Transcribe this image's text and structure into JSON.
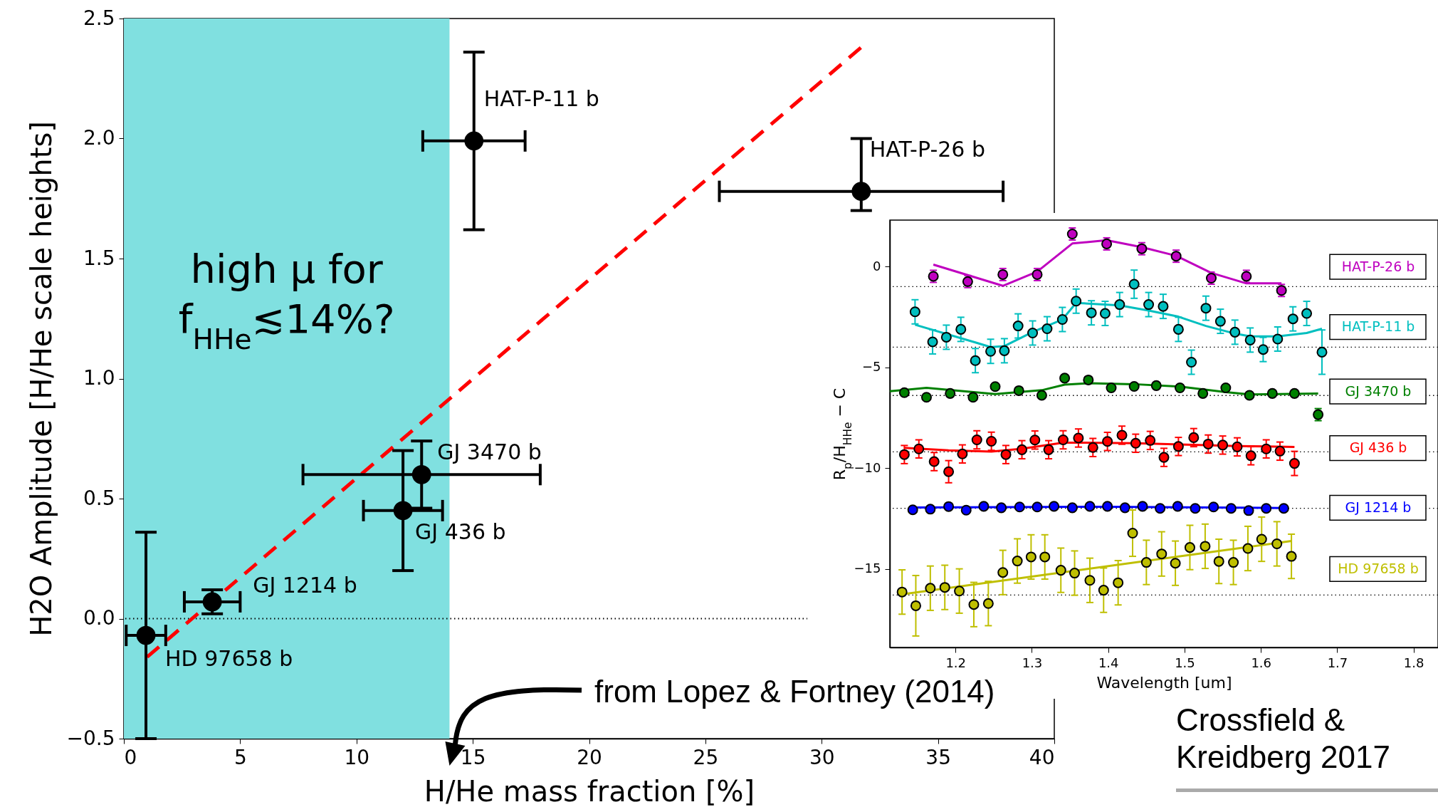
{
  "chart_data": [
    {
      "type": "scatter",
      "xlabel": "H/He mass fraction [%]",
      "ylabel": "H2O Amplitude [H/He scale heights]",
      "xlim": [
        0,
        40
      ],
      "ylim": [
        -0.5,
        2.5
      ],
      "xticks": [
        0,
        5,
        10,
        15,
        20,
        25,
        30,
        35,
        40
      ],
      "yticks": [
        {
          "value": -0.5,
          "label": "−0.5"
        },
        {
          "value": 0,
          "label": "0.0"
        },
        0.5,
        {
          "value": 1,
          "label": "1.0"
        },
        1.5,
        {
          "value": 2,
          "label": "2.0"
        },
        2.5
      ],
      "marker": "circle",
      "bands": [
        {
          "axis": "x",
          "from": 0,
          "to": 14,
          "color": "#80e0e0",
          "label": "high μ for\nf$_{HHe}$≲14%?"
        }
      ],
      "ref_lines": [
        {
          "axis": "y",
          "value": 0,
          "line_style": "dotted"
        }
      ],
      "annotations": [
        {
          "text": "HAT-P-11 b",
          "x": 15.05,
          "y": 1.99
        },
        {
          "text": "HAT-P-26 b",
          "x": 31.7,
          "y": 1.78
        },
        {
          "text": "GJ 3470 b",
          "x": 12.8,
          "y": 0.6
        },
        {
          "text": "GJ 436 b",
          "x": 12.0,
          "y": 0.45
        },
        {
          "text": "GJ 1214 b",
          "x": 3.8,
          "y": 0.07
        },
        {
          "text": "HD 97658 b",
          "x": 0.95,
          "y": -0.07
        },
        "from Lopez & Fortney (2014)"
      ],
      "series": [
        {
          "type": "line",
          "color": "#ff0000",
          "line_style": "dashed",
          "marker": "none",
          "x": [
            1.0,
            31.7
          ],
          "values": [
            -0.16,
            2.38
          ]
        },
        {
          "color": "#000000",
          "x": [
            15.05,
            31.7,
            12.8,
            12.0,
            3.8,
            0.95
          ],
          "values": [
            1.99,
            1.78,
            0.6,
            0.45,
            0.07,
            -0.07
          ],
          "xerrors": [
            2.2,
            6.1,
            5.1,
            1.7,
            1.2,
            0.85
          ],
          "errors": [
            0.37,
            [
              1.7,
              2.0
            ],
            0.14,
            0.25,
            0.05,
            0.43
          ]
        }
      ]
    },
    {
      "type": "scatter",
      "xlabel": "Wavelength [um]",
      "ylabel": "R$_{p}$/H$_{HHe}$ − C",
      "xlim": [
        1.114,
        1.832
      ],
      "ylim": [
        -18.9,
        2.3
      ],
      "xticks": [
        1.2,
        1.3,
        1.4,
        1.5,
        1.6,
        1.7,
        1.8
      ],
      "yticks": [
        {
          "value": -15,
          "label": "−15"
        },
        {
          "value": -10,
          "label": "−10"
        },
        {
          "value": -5,
          "label": "−5"
        },
        0
      ],
      "marker": "circle",
      "ref_lines": [
        {
          "axis": "y",
          "value": -1.0,
          "line_style": "dotted"
        },
        {
          "axis": "y",
          "value": -4.0,
          "line_style": "dotted"
        },
        {
          "axis": "y",
          "value": -6.4,
          "line_style": "dotted"
        },
        {
          "axis": "y",
          "value": -9.2,
          "line_style": "dotted"
        },
        {
          "axis": "y",
          "value": -12.0,
          "line_style": "dotted"
        },
        {
          "axis": "y",
          "value": -16.3,
          "line_style": "dotted"
        }
      ],
      "annotations": [
        "Crossfield & Kreidberg 2017"
      ],
      "series": [
        {
          "type": "line",
          "color": "#bf00bf",
          "marker": "none",
          "x": [
            1.171,
            1.262,
            1.307,
            1.353,
            1.398,
            1.444,
            1.489,
            1.535,
            1.581,
            1.627
          ],
          "values": [
            0.09,
            -0.96,
            -0.26,
            1.14,
            1.3,
            0.96,
            0.53,
            -0.32,
            -0.84,
            -0.84
          ]
        },
        {
          "type": "line",
          "color": "#00bfbf",
          "marker": "none",
          "x": [
            1.147,
            1.226,
            1.246,
            1.264,
            1.301,
            1.34,
            1.358,
            1.415,
            1.453,
            1.492,
            1.528,
            1.566,
            1.586,
            1.622,
            1.66,
            1.68
          ],
          "values": [
            -2.89,
            -3.77,
            -4.0,
            -3.95,
            -3.25,
            -2.63,
            -1.81,
            -1.93,
            -2.19,
            -2.49,
            -2.95,
            -3.33,
            -3.47,
            -3.47,
            -3.3,
            -3.09
          ]
        },
        {
          "type": "line",
          "color": "#008000",
          "marker": "none",
          "x": [
            1.114,
            1.162,
            1.252,
            1.313,
            1.343,
            1.374,
            1.434,
            1.494,
            1.554,
            1.585,
            1.675
          ],
          "values": [
            -6.19,
            -6.02,
            -6.33,
            -6.14,
            -5.86,
            -5.79,
            -5.84,
            -5.96,
            -6.23,
            -6.35,
            -6.3
          ]
        },
        {
          "type": "line",
          "color": "#ff0000",
          "marker": "none",
          "x": [
            1.133,
            1.191,
            1.247,
            1.287,
            1.341,
            1.361,
            1.436,
            1.569,
            1.644
          ],
          "values": [
            -9.0,
            -9.12,
            -9.18,
            -9.04,
            -8.74,
            -8.74,
            -8.77,
            -8.91,
            -8.95
          ]
        },
        {
          "type": "line",
          "color": "#0000ff",
          "marker": "none",
          "x": [
            1.144,
            1.399,
            1.63
          ],
          "values": [
            -11.96,
            -11.92,
            -11.98
          ]
        },
        {
          "type": "line",
          "color": "#bfbf00",
          "marker": "none",
          "x": [
            1.13,
            1.64
          ],
          "values": [
            -16.26,
            -13.62
          ]
        },
        {
          "name": "HAT-P-26 b",
          "color": "#bf00bf",
          "x": [
            1.171,
            1.216,
            1.262,
            1.307,
            1.353,
            1.398,
            1.444,
            1.489,
            1.535,
            1.581,
            1.627
          ],
          "values": [
            -0.49,
            -0.75,
            -0.4,
            -0.4,
            1.61,
            1.12,
            0.88,
            0.51,
            -0.58,
            -0.49,
            -1.19
          ],
          "errors": [
            0.3,
            0.3,
            0.3,
            0.3,
            0.3,
            0.3,
            0.3,
            0.3,
            0.3,
            0.3,
            0.3
          ]
        },
        {
          "name": "HAT-P-11 b",
          "color": "#00bfbf",
          "x": [
            1.147,
            1.17,
            1.188,
            1.207,
            1.226,
            1.246,
            1.264,
            1.282,
            1.301,
            1.32,
            1.34,
            1.358,
            1.378,
            1.396,
            1.415,
            1.434,
            1.453,
            1.472,
            1.492,
            1.509,
            1.528,
            1.547,
            1.566,
            1.586,
            1.603,
            1.622,
            1.642,
            1.66,
            1.68
          ],
          "values": [
            -2.25,
            -3.74,
            -3.51,
            -3.12,
            -4.67,
            -4.21,
            -4.18,
            -2.95,
            -3.3,
            -3.09,
            -2.63,
            -1.72,
            -2.3,
            -2.33,
            -1.89,
            -0.88,
            -1.89,
            -1.98,
            -3.12,
            -4.75,
            -2.07,
            -2.72,
            -3.26,
            -3.65,
            -4.12,
            -3.6,
            -2.6,
            -2.33,
            -4.25
          ],
          "errors": [
            0.6,
            0.6,
            0.6,
            0.6,
            0.6,
            0.6,
            0.6,
            0.6,
            0.6,
            0.6,
            0.6,
            0.6,
            0.6,
            0.6,
            0.6,
            0.7,
            0.6,
            0.6,
            0.6,
            0.6,
            0.6,
            0.6,
            0.6,
            0.6,
            0.6,
            0.6,
            0.6,
            0.6,
            1.1
          ]
        },
        {
          "name": "GJ 3470 b",
          "color": "#008000",
          "x": [
            1.133,
            1.162,
            1.193,
            1.223,
            1.252,
            1.283,
            1.313,
            1.343,
            1.374,
            1.404,
            1.434,
            1.463,
            1.494,
            1.524,
            1.554,
            1.585,
            1.615,
            1.644,
            1.675
          ],
          "values": [
            -6.26,
            -6.49,
            -6.3,
            -6.49,
            -5.96,
            -6.16,
            -6.39,
            -5.54,
            -5.63,
            -6.02,
            -5.95,
            -5.91,
            -6.02,
            -6.3,
            -6.02,
            -6.39,
            -6.3,
            -6.3,
            -7.35
          ],
          "errors": [
            0.15,
            0.15,
            0.15,
            0.15,
            0.15,
            0.15,
            0.15,
            0.15,
            0.15,
            0.15,
            0.15,
            0.15,
            0.15,
            0.15,
            0.15,
            0.15,
            0.15,
            0.15,
            0.3
          ]
        },
        {
          "name": "GJ 436 b",
          "color": "#ff0000",
          "x": [
            1.133,
            1.152,
            1.172,
            1.191,
            1.209,
            1.228,
            1.247,
            1.266,
            1.287,
            1.304,
            1.322,
            1.341,
            1.361,
            1.38,
            1.399,
            1.418,
            1.436,
            1.455,
            1.473,
            1.492,
            1.512,
            1.531,
            1.55,
            1.569,
            1.587,
            1.607,
            1.625,
            1.644
          ],
          "values": [
            -9.33,
            -9.05,
            -9.68,
            -10.18,
            -9.3,
            -8.6,
            -8.67,
            -9.33,
            -9.09,
            -8.61,
            -9.09,
            -8.6,
            -8.51,
            -8.98,
            -8.68,
            -8.37,
            -8.77,
            -8.63,
            -9.47,
            -8.93,
            -8.49,
            -8.81,
            -8.86,
            -8.95,
            -9.39,
            -9.05,
            -9.16,
            -9.77
          ],
          "errors": [
            0.45,
            0.45,
            0.45,
            0.55,
            0.45,
            0.45,
            0.45,
            0.45,
            0.45,
            0.45,
            0.45,
            0.45,
            0.45,
            0.45,
            0.45,
            0.45,
            0.45,
            0.45,
            0.45,
            0.45,
            0.45,
            0.45,
            0.45,
            0.45,
            0.45,
            0.45,
            0.45,
            0.6
          ]
        },
        {
          "name": "GJ 1214 b",
          "color": "#0000ff",
          "x": [
            1.144,
            1.167,
            1.191,
            1.214,
            1.237,
            1.26,
            1.284,
            1.307,
            1.329,
            1.353,
            1.376,
            1.399,
            1.422,
            1.445,
            1.468,
            1.491,
            1.514,
            1.538,
            1.561,
            1.584,
            1.607,
            1.63
          ],
          "values": [
            -12.07,
            -12.04,
            -11.91,
            -12.09,
            -11.9,
            -11.97,
            -11.93,
            -11.93,
            -11.9,
            -11.97,
            -11.9,
            -11.9,
            -11.97,
            -11.9,
            -12.0,
            -11.9,
            -12.0,
            -11.93,
            -12.0,
            -12.11,
            -12.0,
            -12.0
          ]
        },
        {
          "name": "HD 97658 b",
          "color": "#bfbf00",
          "x": [
            1.13,
            1.148,
            1.167,
            1.186,
            1.205,
            1.224,
            1.243,
            1.262,
            1.281,
            1.299,
            1.317,
            1.338,
            1.356,
            1.376,
            1.394,
            1.413,
            1.432,
            1.45,
            1.47,
            1.488,
            1.507,
            1.527,
            1.545,
            1.564,
            1.583,
            1.601,
            1.621,
            1.64
          ],
          "values": [
            -16.15,
            -16.83,
            -15.96,
            -15.92,
            -16.1,
            -16.77,
            -16.72,
            -15.18,
            -14.61,
            -14.41,
            -14.41,
            -15.07,
            -15.21,
            -15.57,
            -16.06,
            -15.69,
            -13.23,
            -14.68,
            -14.26,
            -14.72,
            -13.94,
            -13.88,
            -14.63,
            -14.68,
            -13.99,
            -13.53,
            -13.76,
            -14.38
          ],
          "errors": [
            1.1,
            1.5,
            1.1,
            1.1,
            1.1,
            1.1,
            1.1,
            1.1,
            1.1,
            1.1,
            1.1,
            1.1,
            1.1,
            1.1,
            1.1,
            1.1,
            1.15,
            1.1,
            1.1,
            1.1,
            1.1,
            1.1,
            1.1,
            1.1,
            1.1,
            1.1,
            1.1,
            1.1
          ]
        }
      ]
    }
  ]
}
